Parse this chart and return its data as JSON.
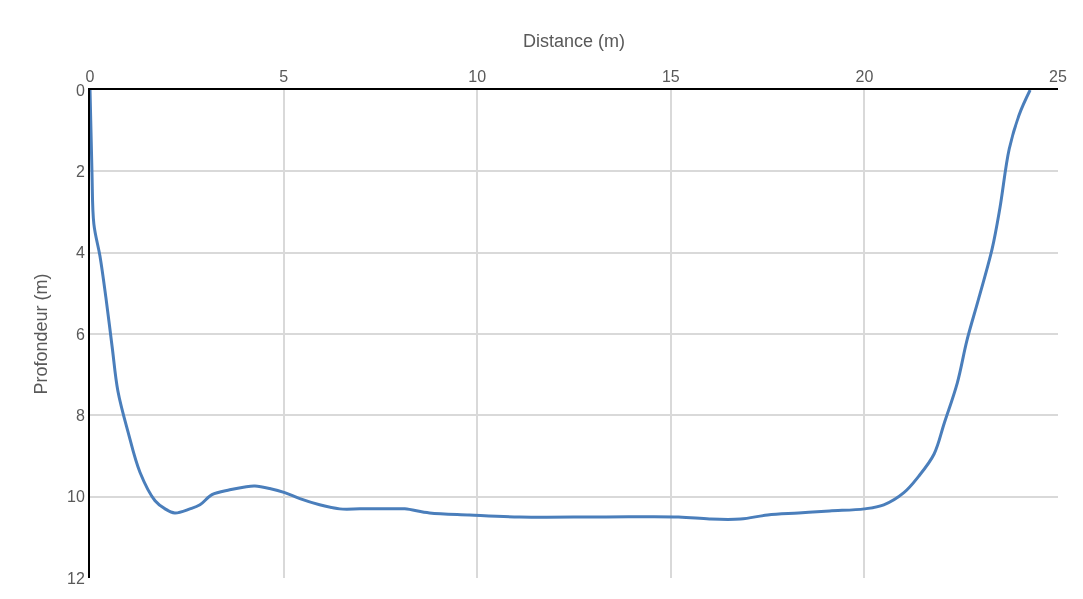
{
  "chart_data": {
    "type": "line",
    "xlabel": "Distance (m)",
    "ylabel": "Profondeur (m)",
    "xlim": [
      0,
      25
    ],
    "xticks": [
      0,
      5,
      10,
      15,
      20,
      25
    ],
    "ylim": [
      12,
      0
    ],
    "yticks": [
      0,
      2,
      4,
      6,
      8,
      10,
      12
    ],
    "grid": true,
    "marker": "none",
    "line_style": "solid",
    "series": [
      {
        "color": "#4a7ebb",
        "x": [
          0,
          0.05,
          0.1,
          0.26,
          0.41,
          0.57,
          0.72,
          0.98,
          1.29,
          1.68,
          1.94,
          2.19,
          2.58,
          2.84,
          3.15,
          3.61,
          4.0,
          4.26,
          4.64,
          5.03,
          5.42,
          5.93,
          6.45,
          6.97,
          7.35,
          7.74,
          8.13,
          8.77,
          9.8,
          11.1,
          13.2,
          15.2,
          16.0,
          16.8,
          17.5,
          18.3,
          19.1,
          20.0,
          20.5,
          21.02,
          21.4,
          21.8,
          22.06,
          22.4,
          22.65,
          22.96,
          23.3,
          23.5,
          23.74,
          24.0,
          24.28
        ],
        "values": [
          0,
          2,
          3.3,
          4.1,
          5.1,
          6.3,
          7.4,
          8.4,
          9.4,
          10.1,
          10.3,
          10.4,
          10.3,
          10.2,
          9.95,
          9.83,
          9.76,
          9.74,
          9.8,
          9.9,
          10.05,
          10.2,
          10.3,
          10.3,
          10.3,
          10.3,
          10.3,
          10.4,
          10.45,
          10.5,
          10.5,
          10.5,
          10.55,
          10.55,
          10.45,
          10.4,
          10.35,
          10.3,
          10.2,
          9.9,
          9.5,
          8.95,
          8.2,
          7.2,
          6.15,
          5.1,
          3.9,
          2.9,
          1.45,
          0.6,
          0
        ]
      }
    ]
  }
}
